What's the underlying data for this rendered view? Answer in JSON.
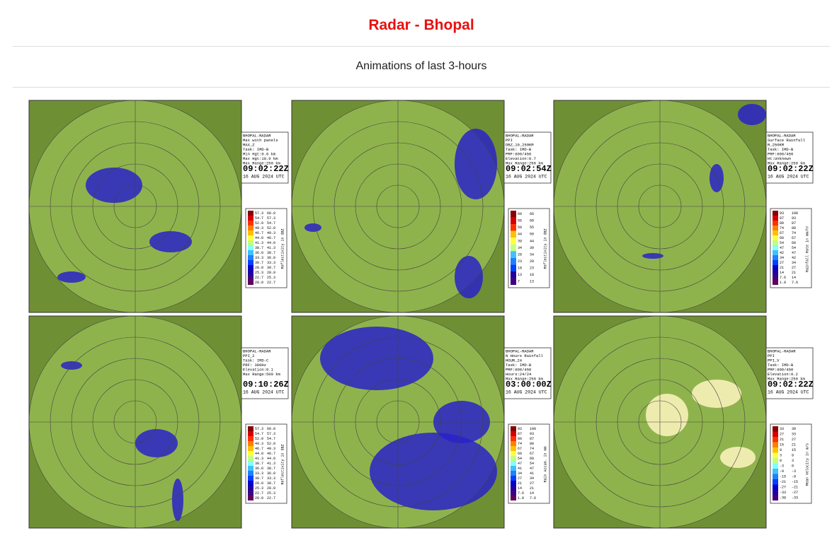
{
  "header": {
    "title": "Radar - Bhopal",
    "subtitle": "Animations of last 3-hours"
  },
  "panels": [
    {
      "info": [
        "BHOPAL-RADAR",
        "Max with panels",
        "MAX_Z",
        "Task: IMD-B",
        "Min Hgt:0.0 km",
        "Max Hgt:18.0 km",
        "Max Range:250 km"
      ],
      "time": "09:02:22Z",
      "date": "16 AUG 2024 UTC",
      "legend_title": "Reflectivity in dBZ",
      "legend": [
        [
          "57.3",
          "60.0"
        ],
        [
          "54.7",
          "57.3"
        ],
        [
          "52.0",
          "54.7"
        ],
        [
          "49.3",
          "52.0"
        ],
        [
          "46.7",
          "49.3"
        ],
        [
          "44.0",
          "46.7"
        ],
        [
          "41.3",
          "44.0"
        ],
        [
          "38.7",
          "41.3"
        ],
        [
          "36.0",
          "38.7"
        ],
        [
          "33.3",
          "36.0"
        ],
        [
          "30.7",
          "33.3"
        ],
        [
          "28.0",
          "30.7"
        ],
        [
          "25.3",
          "28.0"
        ],
        [
          "22.7",
          "25.3"
        ],
        [
          "20.0",
          "22.7"
        ]
      ]
    },
    {
      "info": [
        "BHOPAL-RADAR",
        "PPI",
        "DBZ_10_250KM",
        "Task: IMD-B",
        "PRF:600/450",
        "Elevation:0.7",
        "Max Range:250 km"
      ],
      "time": "09:02:54Z",
      "date": "16 AUG 2024 UTC",
      "legend_title": "Reflectivity in dBZ",
      "legend": [
        [
          "60",
          "66"
        ],
        [
          "55",
          "60"
        ],
        [
          "50",
          "55"
        ],
        [
          "44",
          "50"
        ],
        [
          "39",
          "44"
        ],
        [
          "34",
          "39"
        ],
        [
          "28",
          "34"
        ],
        [
          "23",
          "28"
        ],
        [
          "18",
          "23"
        ],
        [
          "13",
          "18"
        ],
        [
          "7",
          "13"
        ]
      ]
    },
    {
      "info": [
        "BHOPAL-RADAR",
        "Surface Rainfall",
        "R_250KM",
        "Task: IMD-B",
        "PRF:600/450",
        "Ht:Unknown",
        "Max Range:250 km"
      ],
      "time": "09:02:22Z",
      "date": "16 AUG 2024 UTC",
      "legend_title": "Rainfall Rate in mm/hr",
      "legend": [
        [
          "93",
          "100"
        ],
        [
          "87",
          "93"
        ],
        [
          "80",
          "87"
        ],
        [
          "74",
          "80"
        ],
        [
          "67",
          "74"
        ],
        [
          "60",
          "67"
        ],
        [
          "54",
          "60"
        ],
        [
          "47",
          "54"
        ],
        [
          "42",
          "47"
        ],
        [
          "34",
          "42"
        ],
        [
          "27",
          "34"
        ],
        [
          "21",
          "27"
        ],
        [
          "14",
          "21"
        ],
        [
          "7.6",
          "14"
        ],
        [
          "1.0",
          "7.6"
        ]
      ]
    },
    {
      "info": [
        "BHOPAL-RADAR",
        "PPI_2",
        "Task: IMD-C",
        "PRF: 300Hz",
        "Elevation:0.1",
        "Max Range:500 km"
      ],
      "time": "09:10:26Z",
      "date": "16 AUG 2024 UTC",
      "legend_title": "Reflectivity in dBZ",
      "legend": [
        [
          "57.3",
          "60.0"
        ],
        [
          "54.7",
          "57.3"
        ],
        [
          "52.0",
          "54.7"
        ],
        [
          "49.3",
          "52.0"
        ],
        [
          "46.7",
          "49.3"
        ],
        [
          "44.0",
          "46.7"
        ],
        [
          "41.3",
          "44.0"
        ],
        [
          "38.7",
          "41.3"
        ],
        [
          "36.0",
          "38.7"
        ],
        [
          "33.3",
          "36.0"
        ],
        [
          "30.7",
          "33.3"
        ],
        [
          "28.0",
          "30.7"
        ],
        [
          "25.3",
          "28.0"
        ],
        [
          "22.7",
          "25.3"
        ],
        [
          "20.0",
          "22.7"
        ]
      ]
    },
    {
      "info": [
        "BHOPAL-RADAR",
        "N Hours Rainfall",
        "HOUR_24",
        "Task: IMD-B",
        "PRF:600/450",
        "Hours:24/24",
        "Max Range:250 km"
      ],
      "time": "03:00:00Z",
      "date": "16 AUG 2024 UTC",
      "legend_title": "Rain Accum. in mm",
      "legend": [
        [
          "93",
          "100"
        ],
        [
          "87",
          "93"
        ],
        [
          "80",
          "87"
        ],
        [
          "74",
          "80"
        ],
        [
          "67",
          "74"
        ],
        [
          "60",
          "67"
        ],
        [
          "54",
          "60"
        ],
        [
          "47",
          "54"
        ],
        [
          "41",
          "47"
        ],
        [
          "34",
          "41"
        ],
        [
          "27",
          "34"
        ],
        [
          "21",
          "27"
        ],
        [
          "14",
          "21"
        ],
        [
          "7.6",
          "14"
        ],
        [
          "1.0",
          "7.6"
        ]
      ]
    },
    {
      "info": [
        "BHOPAL-RADAR",
        "PPI",
        "PPI_V",
        "Task: IMD-B",
        "PRF:600/450",
        "Elevation:0.2",
        "Max Range:250 km"
      ],
      "time": "09:02:22Z",
      "date": "16 AUG 2024 UTC",
      "legend_title": "Mean Velocity in m/s",
      "legend": [
        [
          "33",
          "39"
        ],
        [
          "27",
          "33"
        ],
        [
          "21",
          "27"
        ],
        [
          "15",
          "21"
        ],
        [
          "9",
          "15"
        ],
        [
          "3",
          "9"
        ],
        [
          "0",
          "3"
        ],
        [
          "-3",
          "0"
        ],
        [
          "-9",
          "-3"
        ],
        [
          "-15",
          "-9"
        ],
        [
          "-21",
          "-15"
        ],
        [
          "-27",
          "-21"
        ],
        [
          "-33",
          "-27"
        ],
        [
          "-39",
          "-33"
        ]
      ]
    }
  ]
}
